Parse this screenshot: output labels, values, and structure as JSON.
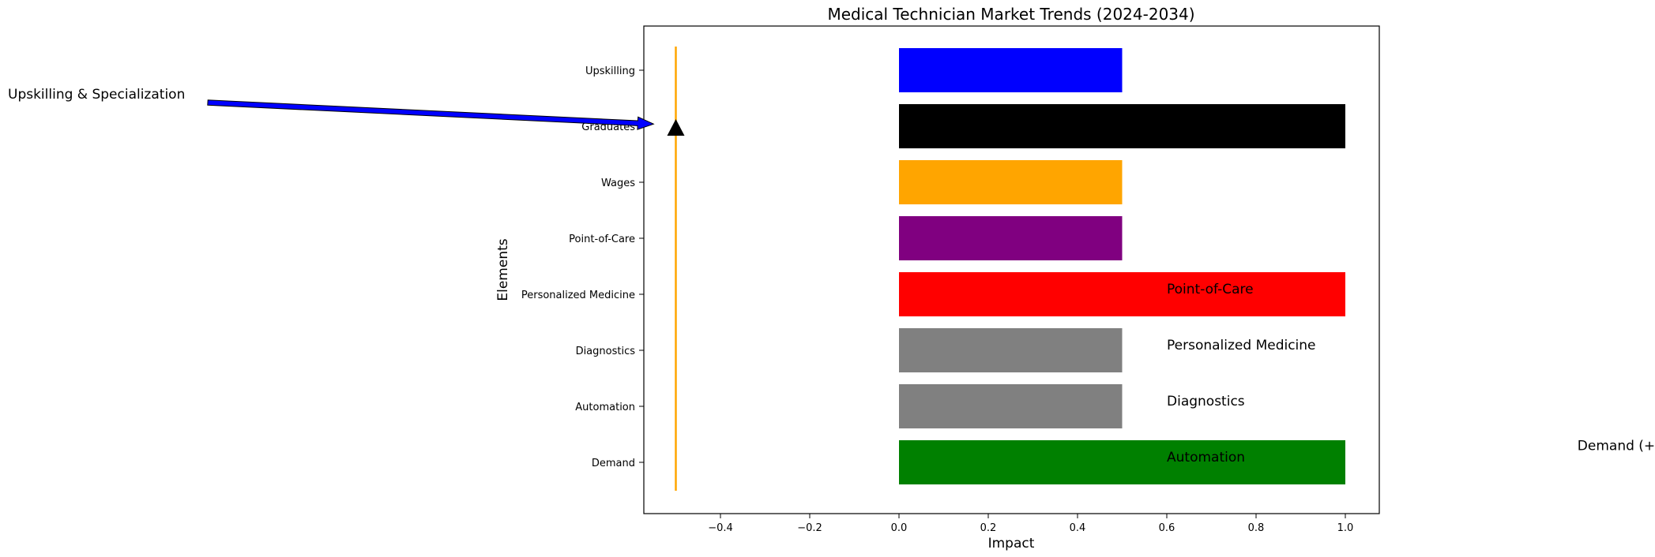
{
  "chart_data": {
    "type": "bar",
    "orientation": "horizontal",
    "title": "Medical Technician Market Trends (2024-2034)",
    "xlabel": "Impact",
    "ylabel": "Elements",
    "xlim": [
      -0.57,
      1.08
    ],
    "x_ticks": [
      -0.4,
      -0.2,
      0.0,
      0.2,
      0.4,
      0.6,
      0.8,
      1.0
    ],
    "x_tick_labels": [
      "−0.4",
      "−0.2",
      "0.0",
      "0.2",
      "0.4",
      "0.6",
      "0.8",
      "1.0"
    ],
    "categories": [
      "Demand",
      "Automation",
      "Diagnostics",
      "Personalized Medicine",
      "Point-of-Care",
      "Wages",
      "Graduates",
      "Upskilling"
    ],
    "values": [
      1.0,
      0.5,
      0.5,
      1.0,
      0.5,
      0.5,
      1.0,
      0.5
    ],
    "colors": [
      "#008000",
      "#808080",
      "#808080",
      "#ff0000",
      "#800080",
      "#ffa500",
      "#000000",
      "#0000ff"
    ],
    "grid": false,
    "reference_line": {
      "x": -0.5,
      "color": "#ffa500"
    },
    "marker": {
      "shape": "triangle-up",
      "x": -0.5,
      "y": 6,
      "color": "#000000"
    },
    "annotations": [
      {
        "text": "Point-of-Care",
        "x": 0.6,
        "y": 3.1
      },
      {
        "text": "Personalized Medicine",
        "x": 0.6,
        "y": 2.1
      },
      {
        "text": "Diagnostics",
        "x": 0.6,
        "y": 1.1
      },
      {
        "text": "Automation",
        "x": 0.6,
        "y": 0.1
      },
      {
        "text": "Demand (+)",
        "x": 1.52,
        "y": 0.3
      }
    ],
    "arrow_annotation": {
      "text": "Upskilling & Specialization",
      "text_pos": [
        -2.0,
        6.6
      ],
      "points_to": [
        -0.55,
        6.04
      ],
      "color": "#0000ff"
    }
  }
}
